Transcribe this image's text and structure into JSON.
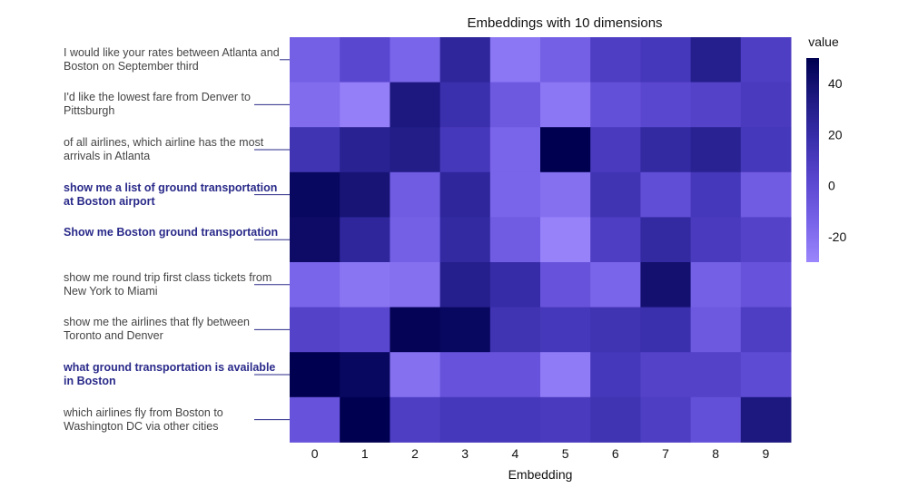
{
  "chart_data": {
    "type": "heatmap",
    "title": "Embeddings with 10 dimensions",
    "xlabel": "Embedding",
    "x_ticks": [
      "0",
      "1",
      "2",
      "3",
      "4",
      "5",
      "6",
      "7",
      "8",
      "9"
    ],
    "rows": [
      {
        "label": "I would like your rates between Atlanta and Boston on September third",
        "highlight": false
      },
      {
        "label": "I'd like the lowest fare from Denver to Pittsburgh",
        "highlight": false
      },
      {
        "label": "of all airlines,  which airline has the most arrivals in Atlanta",
        "highlight": false
      },
      {
        "label": "show me a list of ground transportation at Boston airport",
        "highlight": true
      },
      {
        "label": "Show me Boston ground transportation",
        "highlight": true
      },
      {
        "label": "show me round trip first class tickets from New York to Miami",
        "highlight": false
      },
      {
        "label": "show me the airlines that fly between Toronto and Denver",
        "highlight": false
      },
      {
        "label": "what ground transportation is available in Boston",
        "highlight": true
      },
      {
        "label": "which airlines fly from Boston to Washington DC via other cities",
        "highlight": false
      }
    ],
    "values": [
      [
        -12,
        2,
        -15,
        25,
        -23,
        -12,
        8,
        12,
        30,
        8
      ],
      [
        -18,
        -27,
        35,
        18,
        -8,
        -23,
        -3,
        2,
        5,
        10
      ],
      [
        15,
        28,
        32,
        12,
        -15,
        50,
        10,
        22,
        28,
        12
      ],
      [
        45,
        38,
        -10,
        25,
        -15,
        -20,
        15,
        -2,
        12,
        -10
      ],
      [
        43,
        25,
        -12,
        22,
        -10,
        -28,
        8,
        22,
        10,
        5
      ],
      [
        -15,
        -22,
        -20,
        30,
        20,
        -5,
        -15,
        40,
        -12,
        -5
      ],
      [
        5,
        2,
        48,
        45,
        15,
        12,
        15,
        18,
        -8,
        8
      ],
      [
        50,
        45,
        -20,
        -5,
        -5,
        -25,
        12,
        5,
        5,
        0
      ],
      [
        -5,
        52,
        8,
        12,
        12,
        10,
        15,
        8,
        -3,
        35
      ]
    ],
    "colorbar": {
      "title": "value",
      "min": -30,
      "max": 50,
      "ticks": [
        -20,
        0,
        20,
        40
      ],
      "colors": [
        "#9b86fc",
        "#7763e8",
        "#5a47d0",
        "#3a2fac",
        "#1e1a82",
        "#000050"
      ]
    }
  }
}
